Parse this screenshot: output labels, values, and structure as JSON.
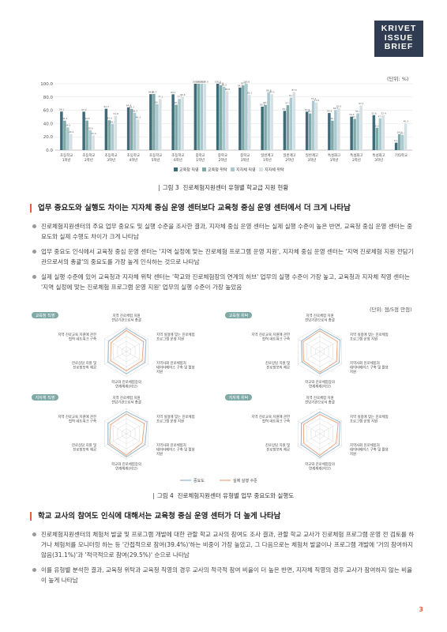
{
  "logo": {
    "line1": "KRIVET",
    "line2": "ISSUE",
    "line3": "BRIEF"
  },
  "figure3": {
    "unit": "(단위: %)",
    "caption_num": "그림 3",
    "caption_text": "진로체험지원센터 유형별 학교급 지원 현황",
    "legend": [
      "교육청 직영",
      "교육청 위탁",
      "지자체 직영",
      "지자체 위탁"
    ],
    "colors": [
      "#3d6b7a",
      "#7fa9a6",
      "#a9c8cf",
      "#d6e0e3"
    ]
  },
  "chart_data": [
    {
      "type": "bar",
      "title": "",
      "ylim": [
        0,
        100
      ],
      "yticks": [
        "0.0",
        "20.0",
        "40.0",
        "60.0",
        "80.0",
        "100.0"
      ],
      "categories": [
        "초등학교 1학년",
        "초등학교 2학년",
        "초등학교 3학년",
        "초등학교 4학년",
        "초등학교 5학년",
        "초등학교 6학년",
        "중학교 1학년",
        "중학교 2학년",
        "중학교 3학년",
        "일반계고 1학년",
        "일반계고 2학년",
        "일반계고 3학년",
        "특성화고 1학년",
        "특성화고 2학년",
        "특성화고 3학년",
        "기타학교"
      ],
      "series": [
        {
          "name": "교육청 직영",
          "values": [
            58.1,
            57.9,
            62.3,
            64.4,
            84.3,
            84.1,
            100.0,
            100.0,
            94.3,
            65.5,
            59.1,
            57.9,
            55.9,
            50.4,
            52.6,
            11.2
          ]
        },
        {
          "name": "교육청 위탁",
          "values": [
            44.4,
            44.5,
            45.0,
            62.1,
            84.7,
            68.4,
            100.0,
            97.8,
            97.5,
            68.3,
            67.7,
            55.2,
            44.4,
            47.1,
            33.6,
            24.1
          ]
        },
        {
          "name": "지자체 직영",
          "values": [
            34.3,
            29.9,
            39.4,
            56.2,
            69.3,
            77.1,
            100.0,
            95.5,
            100.0,
            86.8,
            79.1,
            74.3,
            60.3,
            55.4,
            47.9,
            22.9
          ]
        },
        {
          "name": "지자체 위탁",
          "values": [
            24.4,
            22.0,
            51.8,
            46.3,
            77.1,
            80.6,
            100.0,
            88.8,
            83.1,
            84.3,
            87.5,
            71.8,
            63.0,
            67.1,
            52.4,
            40.3
          ]
        }
      ]
    },
    {
      "type": "radar",
      "panels": [
        "교육청 직영",
        "교육청 위탁",
        "지자체 직영",
        "지자체 위탁"
      ],
      "axes": [
        "지역 진로체험 지원 전담기관으로서 총괄",
        "지역 실정에 맞는 진로체험 프로그램 운영 지원",
        "지역사회 진로체험처 데이터베이스 구축 및 활용 지원",
        "학교와 진로체험장의 연계체계(허브)",
        "진로상담 지원 및 진로정보의 제공",
        "지역 진로교육 지원에 관한 협력 네트워크 구축"
      ],
      "rlim": [
        0,
        5
      ],
      "series": [
        {
          "name": "중요도",
          "values": [
            [
              4.6,
              4.5,
              4.3,
              4.4,
              4.2,
              4.1
            ],
            [
              4.5,
              4.6,
              4.4,
              4.4,
              4.1,
              4.2
            ],
            [
              4.4,
              4.7,
              4.3,
              4.6,
              4.2,
              4.2
            ],
            [
              4.3,
              4.6,
              4.4,
              4.7,
              4.3,
              4.2
            ]
          ]
        },
        {
          "name": "실제 실행 수준",
          "values": [
            [
              4.2,
              3.9,
              3.6,
              3.8,
              3.6,
              3.5
            ],
            [
              4.1,
              4.0,
              3.8,
              4.1,
              3.7,
              3.8
            ],
            [
              3.9,
              4.1,
              3.6,
              4.3,
              3.8,
              3.6
            ],
            [
              3.8,
              4.2,
              3.7,
              4.3,
              3.7,
              3.7
            ]
          ]
        }
      ]
    }
  ],
  "section1": {
    "heading": "업무 중요도와 실행도 차이는 지자체 중심 운영 센터보다 교육청 중심 운영 센터에서 더 크게 나타남",
    "bullets": [
      "진로체험지원센터의 주요 업무 중요도 및 실행 수준을 조사한 결과, 지자체 중심 운영 센터는 실제 실행 수준이 높은 반면, 교육청 중심 운영 센터는 중요도와 실제 수행도 차이가 크게 나타남",
      "업무 중요도 인식에서 교육청 중심 운영 센터는 '지역 실정에 맞는 진로체험 프로그램 운영 지원', 지자체 중심 운영 센터는 '지역 진로체험 지원 전담기관으로서의 총괄'의 중요도를 가장 높게 인식하는 것으로 나타남",
      "실제 실행 수준에 있어 교육청과 지자체 위탁 센터는 '학교와 진로체험장의 연계의 허브' 업무의 실행 수준이 가장 높고, 교육청과 지자체 직영 센터는 '지역 실정에 맞는 진로체험 프로그램 운영 지원' 업무의 실행 수준이 가장 높았음"
    ]
  },
  "figure4": {
    "unit": "(단위: 점/5점 만점)",
    "caption_num": "그림 4",
    "caption_text": "진로체험지원센터 유형별 업무 중요도와 실행도",
    "legend": [
      "중요도",
      "실제 실행 수준"
    ],
    "colors": {
      "importance": "#8fb3c8",
      "execution": "#e7a37d",
      "tag": "#7fa9a6"
    },
    "axis_labels": {
      "top": "지역 진로체험 지원 전담기관으로서 총괄",
      "upper_right": "지역 실정에 맞는 진로체험 프로그램 운영 지원",
      "lower_right": "지역사회 진로체험처 데이터베이스 구축 및 활용 지원",
      "bottom": "학교와 진로체험장의 연계체계(허브)",
      "lower_left": "진로상담 지원 및 진로정보의 제공",
      "upper_left": "지역 진로교육 지원에 관한 협력 네트워크 구축"
    }
  },
  "section2": {
    "heading": "학교 교사의 참여도 인식에 대해서는 교육청 중심 운영 센터가 더 높게 나타남",
    "bullets": [
      "진로체험지원센터의 체험처 발굴 및 프로그램 개발에 대한 관할 학교 교사의 참여도 조사 결과, 관할 학교 교사가 진로체험 프로그램 운영 전 검토를 하거나 체험처를 모니터링 하는 등 '간접적으로 참여(39.4%)'하는 비중이 가장 높았고, 그 다음으로는 체험처 발굴이나 프로그램 개발에 '거의 참여하지 않음(31.1%)'과 '적극적으로 참여(29.5%)' 순으로 나타남",
      "이를 유형별 분석한 결과, 교육청 위탁과 교육청 직영의 경우 교사의 적극적 참여 비율이 더 높은 반면, 지자체 직영의 경우 교사가 참여하지 않는 비율이 높게 나타남"
    ]
  },
  "page_number": "3"
}
